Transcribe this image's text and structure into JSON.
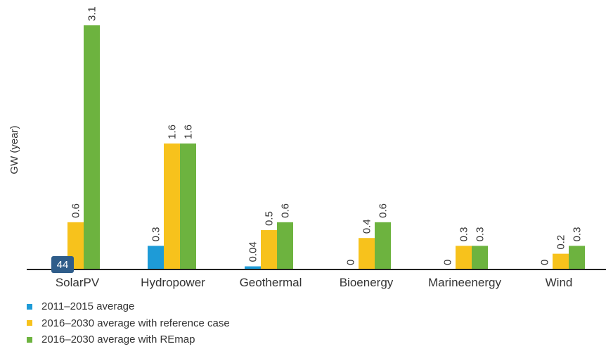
{
  "page_badge": "44",
  "chart_data": {
    "type": "bar",
    "title": "",
    "xlabel": "",
    "ylabel": "GW (year)",
    "ylim": [
      0,
      3.1
    ],
    "grid": false,
    "legend_position": "bottom-left",
    "categories": [
      "SolarPV",
      "Hydropower",
      "Geothermal",
      "Bioenergy",
      "Marineenergy",
      "Wind"
    ],
    "series": [
      {
        "name": "2011–2015 average",
        "color": "#1e9bd7",
        "values": [
          0.0,
          0.3,
          0.04,
          0,
          0,
          0
        ],
        "labels": [
          "",
          "0.3",
          "0.04",
          "0",
          "0",
          "0"
        ]
      },
      {
        "name": "2016–2030 average with reference case",
        "color": "#f7c21c",
        "values": [
          0.6,
          1.6,
          0.5,
          0.4,
          0.3,
          0.2
        ],
        "labels": [
          "0.6",
          "1.6",
          "0.5",
          "0.4",
          "0.3",
          "0.2"
        ]
      },
      {
        "name": "2016–2030 average with REmap",
        "color": "#6db33f",
        "values": [
          3.1,
          1.6,
          0.6,
          0.6,
          0.3,
          0.3
        ],
        "labels": [
          "3.1",
          "1.6",
          "0.6",
          "0.6",
          "0.3",
          "0.3"
        ]
      }
    ]
  }
}
